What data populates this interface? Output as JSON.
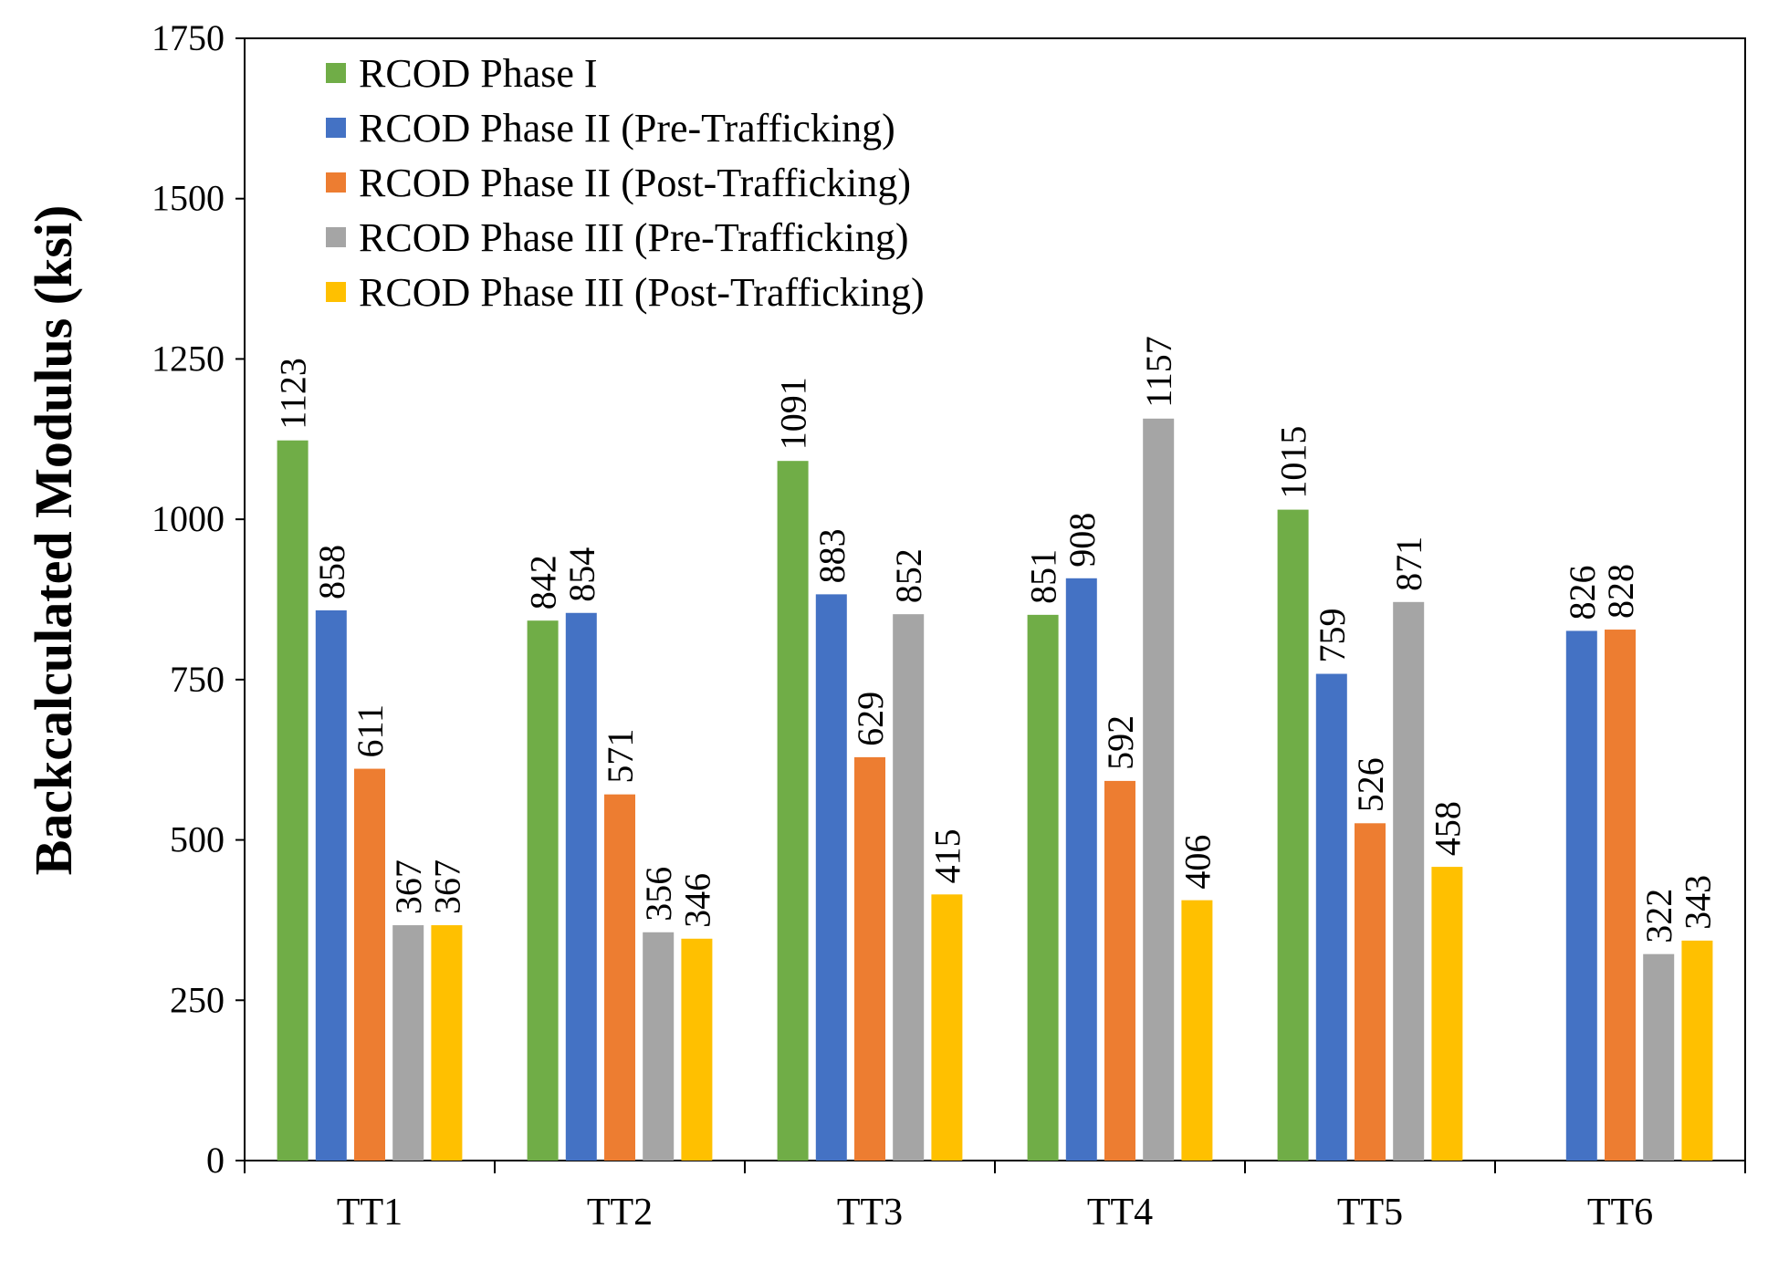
{
  "chart_data": {
    "type": "bar",
    "title": "",
    "xlabel": "",
    "ylabel": "Backcalculated Modulus (ksi)",
    "ylim": [
      0,
      1750
    ],
    "yticks": [
      0,
      250,
      500,
      750,
      1000,
      1250,
      1500,
      1750
    ],
    "categories": [
      "TT1",
      "TT2",
      "TT3",
      "TT4",
      "TT5",
      "TT6"
    ],
    "grid": false,
    "legend_position": "top-left",
    "series": [
      {
        "name": "RCOD Phase I",
        "color": "#70AD47",
        "values": [
          1123,
          842,
          1091,
          851,
          1015,
          null
        ]
      },
      {
        "name": "RCOD Phase II (Pre-Trafficking)",
        "color": "#4472C4",
        "values": [
          858,
          854,
          883,
          908,
          759,
          826
        ]
      },
      {
        "name": "RCOD Phase II (Post-Trafficking)",
        "color": "#ED7D31",
        "values": [
          611,
          571,
          629,
          592,
          526,
          828
        ]
      },
      {
        "name": "RCOD Phase III (Pre-Trafficking)",
        "color": "#A5A5A5",
        "values": [
          367,
          356,
          852,
          1157,
          871,
          322
        ]
      },
      {
        "name": "RCOD Phase III (Post-Trafficking)",
        "color": "#FFC000",
        "values": [
          367,
          346,
          415,
          406,
          458,
          343
        ]
      }
    ]
  }
}
